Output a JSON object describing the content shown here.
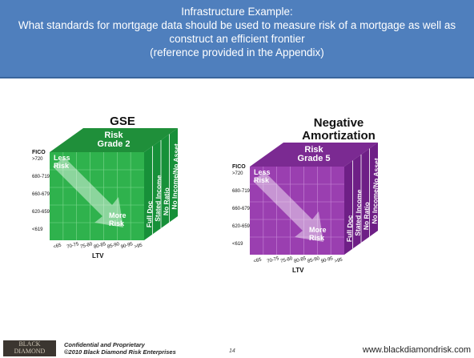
{
  "header": {
    "title": "Infrastructure Example:",
    "question": "What  standards for mortgage data should  be  used to measure risk of a mortgage as well as construct an efficient frontier",
    "note": "(reference provided in the Appendix)"
  },
  "cubes": [
    {
      "title_lines": [
        "GSE"
      ],
      "grade": [
        "Risk",
        "Grade 2"
      ],
      "less": [
        "Less",
        "Risk"
      ],
      "more": [
        "More",
        "Risk"
      ],
      "fico_label": "FICO",
      "fico": [
        ">720",
        "680-719",
        "660-679",
        "620-659",
        "<619"
      ],
      "ltv_label": "LTV",
      "ltv": [
        "<65",
        "70-75",
        "75-80",
        "80-85",
        "85-90",
        "90-95",
        ">95"
      ],
      "docs": [
        "Full Doc",
        "Stated Income",
        "No Ratio",
        "No Income/No Asset"
      ]
    },
    {
      "title_lines": [
        "Negative",
        "Amortization"
      ],
      "grade": [
        "Risk",
        "Grade 5"
      ],
      "less": [
        "Less",
        "Risk"
      ],
      "more": [
        "More",
        "Risk"
      ],
      "fico_label": "FICO",
      "fico": [
        ">720",
        "680-719",
        "660-679",
        "620-659",
        "<619"
      ],
      "ltv_label": "LTV",
      "ltv": [
        "<65",
        "70-75",
        "75-80",
        "80-85",
        "85-90",
        "90-95",
        ">95"
      ],
      "docs": [
        "Full Doc",
        "Stated Income",
        "No Ratio",
        "No Income/No Asset"
      ]
    }
  ],
  "footer": {
    "logo": "BLACK DIAMOND",
    "confidential": "Confidential and Proprietary",
    "copyright": "©2010 Black Diamond Risk Enterprises",
    "page": "14",
    "url": "www.blackdiamondrisk.com"
  }
}
